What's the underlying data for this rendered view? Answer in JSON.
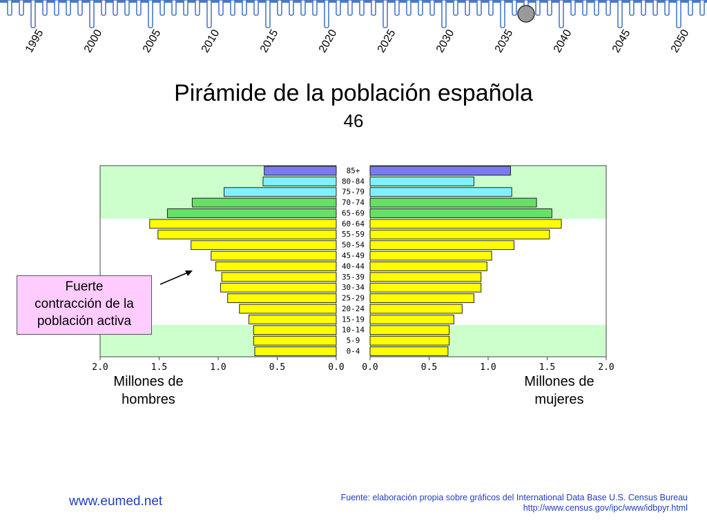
{
  "timeline": {
    "years": [
      "1995",
      "2000",
      "2005",
      "2010",
      "2015",
      "2020",
      "2025",
      "2030",
      "2035",
      "2040",
      "2045",
      "2050"
    ],
    "current_year": 2037,
    "accent_color": "#4a78c8",
    "marker_color": "#9a9a9a"
  },
  "title": "Pirámide de la población española",
  "subtitle": "46",
  "annotation": {
    "line1": "Fuerte",
    "line2": "contracción de la",
    "line3": "población activa"
  },
  "axis_captions": {
    "left_line1": "Millones de",
    "left_line2": "hombres",
    "right_line1": "Millones de",
    "right_line2": "mujeres"
  },
  "footer": {
    "site": "www.eumed.net",
    "source_line1": "Fuente: elaboración propia sobre gráficos del International Data Base U.S. Census Bureau",
    "source_line2": "http://www.census.gov/ipc/www/idbpyr.html"
  },
  "chart_data": {
    "type": "bar",
    "orientation": "horizontal-pyramid",
    "categories": [
      "85+",
      "80-84",
      "75-79",
      "70-74",
      "65-69",
      "60-64",
      "55-59",
      "50-54",
      "45-49",
      "40-44",
      "35-39",
      "30-34",
      "25-29",
      "20-24",
      "15-19",
      "10-14",
      "5-9",
      "0-4"
    ],
    "series": [
      {
        "name": "hombres",
        "values": [
          0.61,
          0.62,
          0.95,
          1.22,
          1.43,
          1.58,
          1.51,
          1.23,
          1.06,
          1.02,
          0.97,
          0.98,
          0.92,
          0.82,
          0.74,
          0.7,
          0.7,
          0.69
        ]
      },
      {
        "name": "mujeres",
        "values": [
          1.19,
          0.88,
          1.2,
          1.41,
          1.54,
          1.62,
          1.52,
          1.22,
          1.03,
          0.99,
          0.94,
          0.94,
          0.88,
          0.78,
          0.71,
          0.67,
          0.67,
          0.66
        ]
      }
    ],
    "xlim": [
      0,
      2.0
    ],
    "x_ticks": [
      "0.0",
      "0.5",
      "1.0",
      "1.5",
      "2.0"
    ],
    "age_group_colors": {
      "85+": "#7b7bf0",
      "80-84": "#80f0ff",
      "75-79": "#80f0ff",
      "70-74": "#66e066",
      "65-69": "#66e066",
      "default": "#ffff00"
    },
    "background_bands": {
      "elderly": "#ccffcc",
      "working": "#ffffff",
      "young": "#ccffcc"
    }
  }
}
